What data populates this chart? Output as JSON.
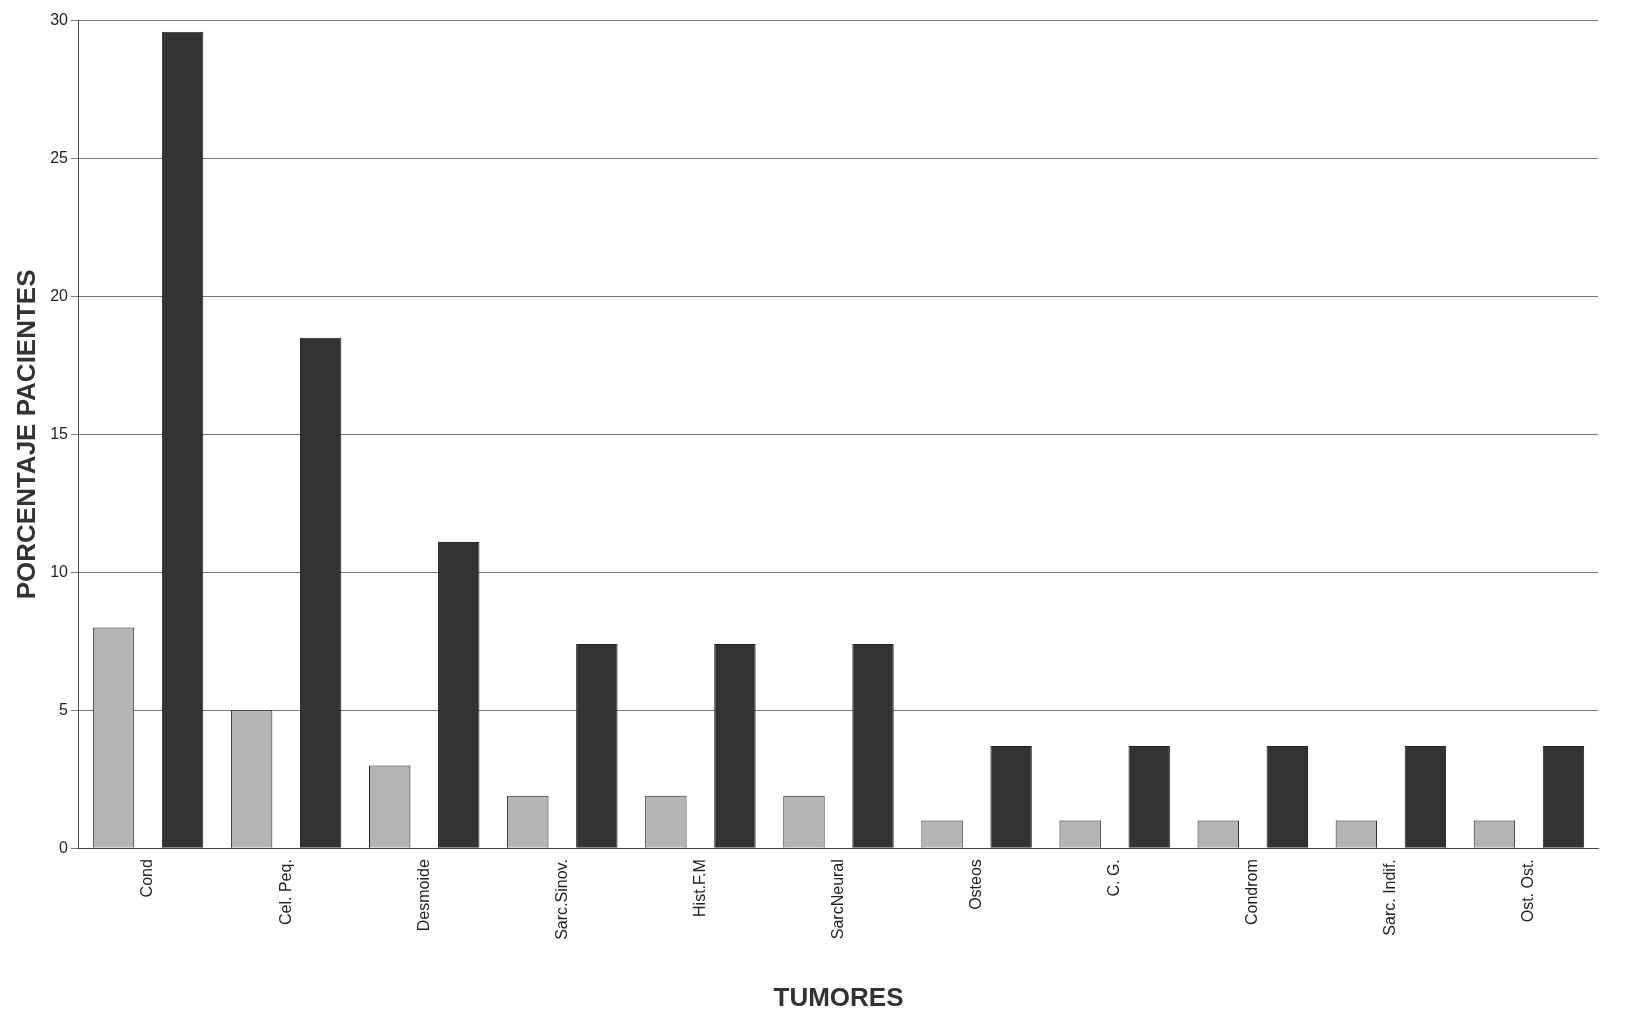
{
  "chart_data": {
    "type": "bar",
    "xlabel": "TUMORES",
    "ylabel": "PORCENTAJE PACIENTES",
    "categories": [
      "Cond",
      "Cel. Peq.",
      "Desmoide",
      "Sarc.Sinov.",
      "Hist.F.M",
      "SarcNeural",
      "Osteos",
      "C. G.",
      "Condrom",
      "Sarc. Indif.",
      "Ost. Ost."
    ],
    "series": [
      {
        "color": "#b4b4b4",
        "values": [
          8.0,
          5.0,
          3.0,
          1.9,
          1.9,
          1.9,
          1.0,
          1.0,
          1.0,
          1.0,
          1.0
        ]
      },
      {
        "color": "#333333",
        "values": [
          29.6,
          18.5,
          11.1,
          7.4,
          7.4,
          7.4,
          3.7,
          3.7,
          3.7,
          3.7,
          3.7
        ]
      }
    ],
    "ylim": [
      0,
      30
    ],
    "yticks": [
      0,
      5,
      10,
      15,
      20,
      25,
      30
    ],
    "grid": "y"
  }
}
